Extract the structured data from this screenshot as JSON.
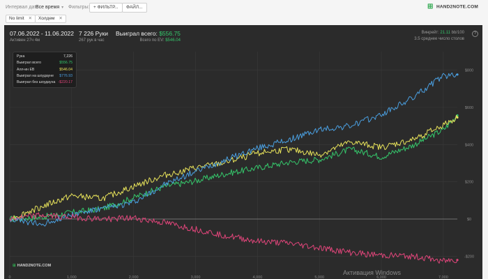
{
  "topbar": {
    "date_interval_label": "Интервал дат:",
    "date_interval_value": "Все время",
    "filters_label": "Фильтры:",
    "filter_button": "+ ФИЛЬТР...",
    "file_button": "ФАЙЛ...",
    "chips": [
      "No limit",
      "Холдем"
    ],
    "logo": "HAND2NOTE.COM"
  },
  "stats": {
    "date_range": "07.06.2022 - 11.06.2022",
    "active": "Активен 27ч 4м",
    "hands": "7 226 Руки",
    "hands_per_hour": "267 рук в час",
    "won_total_label": "Выиграл всего:",
    "won_total_value": "$556.75",
    "ev_label": "Всего по EV:",
    "ev_value": "$546.04",
    "winrate_label": "Винрейт:",
    "winrate_value": "21.11",
    "winrate_unit": "bb/100",
    "tables": "3.5 среднее число столов"
  },
  "tooltip": {
    "rows": [
      {
        "label": "Рука",
        "value": "7,226",
        "color": "#e0e0e0"
      },
      {
        "label": "Выиграл всего",
        "value": "$556.75",
        "color": "#35c76b"
      },
      {
        "label": "Алл-ин EВ",
        "value": "$546.04",
        "color": "#e8e35a"
      },
      {
        "label": "Выиграл на шоудауне",
        "value": "$776.93",
        "color": "#4a9fe0"
      },
      {
        "label": "Выиграл без шоудауна",
        "value": "-$220.17",
        "color": "#e0457a"
      }
    ]
  },
  "watermark": "Активация Windows",
  "bottom_logo": "HAND2NOTE.COM",
  "colors": {
    "won_total": "#35c76b",
    "allin_ev": "#e8e35a",
    "showdown": "#4a9fe0",
    "non_showdown": "#e0457a"
  },
  "chart_data": {
    "type": "line",
    "x": [
      0,
      500,
      1000,
      1500,
      2000,
      2500,
      3000,
      3500,
      4000,
      4500,
      5000,
      5500,
      6000,
      6500,
      7000,
      7226
    ],
    "xlim": [
      0,
      7226
    ],
    "ylim": [
      -300,
      900
    ],
    "y_ticks": [
      -200,
      0,
      200,
      400,
      600,
      800
    ],
    "y_tick_labels": [
      "-$200",
      "$0",
      "$200",
      "$400",
      "$600",
      "$800"
    ],
    "x_tick_labels": [
      "0",
      "1,000",
      "2,000",
      "3,000",
      "4,000",
      "5,000",
      "6,000",
      "7,000"
    ],
    "x_ticks": [
      0,
      1000,
      2000,
      3000,
      4000,
      5000,
      6000,
      7000
    ],
    "series": [
      {
        "name": "Выиграл всего",
        "color": "#35c76b",
        "values": [
          0,
          10,
          35,
          55,
          115,
          175,
          205,
          245,
          275,
          305,
          320,
          375,
          335,
          395,
          480,
          556.75
        ]
      },
      {
        "name": "Алл-ин EВ",
        "color": "#e8e35a",
        "values": [
          0,
          65,
          125,
          110,
          175,
          235,
          275,
          305,
          355,
          375,
          345,
          415,
          385,
          425,
          505,
          546.04
        ]
      },
      {
        "name": "Выиграл на шоудауне",
        "color": "#4a9fe0",
        "values": [
          0,
          -30,
          25,
          55,
          90,
          185,
          255,
          320,
          380,
          425,
          480,
          500,
          560,
          650,
          770,
          776.93
        ]
      },
      {
        "name": "Выиграл без шоудауна",
        "color": "#e0457a",
        "values": [
          0,
          20,
          10,
          0,
          5,
          -20,
          -55,
          -90,
          -120,
          -130,
          -155,
          -180,
          -195,
          -200,
          -225,
          -220.17
        ]
      }
    ],
    "grid": true,
    "legend": "tooltip top-left"
  }
}
